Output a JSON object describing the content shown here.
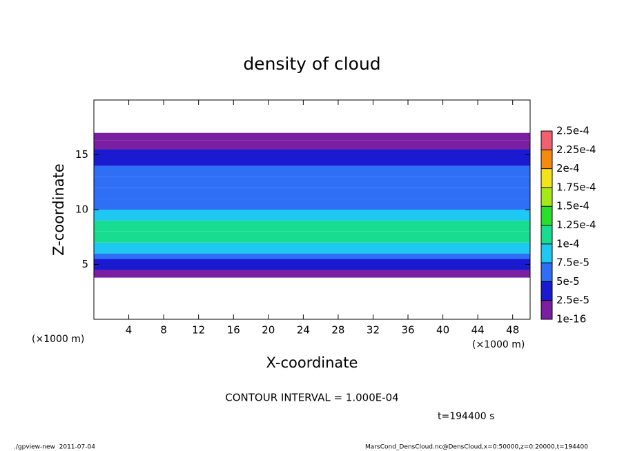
{
  "chart_data": {
    "type": "heatmap",
    "title": "density of cloud",
    "x_label": "X-coordinate",
    "y_label": "Z-coordinate",
    "x_unit": "(×1000 m)",
    "xlim": [
      0,
      50
    ],
    "xticks": [
      4,
      8,
      12,
      16,
      20,
      24,
      28,
      32,
      36,
      40,
      44,
      48
    ],
    "ylim": [
      0,
      20
    ],
    "yticks": [
      5,
      10,
      15
    ],
    "z_edges": [
      3.8,
      4.5,
      5,
      5.5,
      6,
      7,
      8,
      9,
      10,
      11,
      12,
      13,
      14,
      15,
      15.5,
      16.3,
      17
    ],
    "values": [
      1e-06,
      3e-05,
      4e-05,
      6.5e-05,
      9e-05,
      0.00012,
      0.000105,
      8e-05,
      7e-05,
      6e-05,
      5.5e-05,
      5e-05,
      4.5e-05,
      3e-05,
      1.5e-05,
      1e-06
    ],
    "colorbar": {
      "levels": [
        {
          "value": 1e-16,
          "label": "1e-16"
        },
        {
          "value": 2.5e-05,
          "label": "2.5e-5"
        },
        {
          "value": 5e-05,
          "label": "5e-5"
        },
        {
          "value": 7.5e-05,
          "label": "7.5e-5"
        },
        {
          "value": 0.0001,
          "label": "1e-4"
        },
        {
          "value": 0.000125,
          "label": "1.25e-4"
        },
        {
          "value": 0.00015,
          "label": "1.5e-4"
        },
        {
          "value": 0.000175,
          "label": "1.75e-4"
        },
        {
          "value": 0.0002,
          "label": "2e-4"
        },
        {
          "value": 0.000225,
          "label": "2.25e-4"
        },
        {
          "value": 0.00025,
          "label": "2.5e-4"
        }
      ],
      "colors": [
        "#7a1fa2",
        "#1a1ad0",
        "#2f6ff5",
        "#1ec8f0",
        "#18dd90",
        "#2adf2a",
        "#a6e81a",
        "#f3e31a",
        "#f58a10",
        "#f06070"
      ]
    },
    "contour_interval": "CONTOUR INTERVAL = 1.000E-04",
    "time_label": "t=194400 s",
    "footer_left": "./gpview-new  2011-07-04",
    "footer_right": "MarsCond_DensCloud.nc@DensCloud,x=0:50000,z=0:20000,t=194400"
  }
}
